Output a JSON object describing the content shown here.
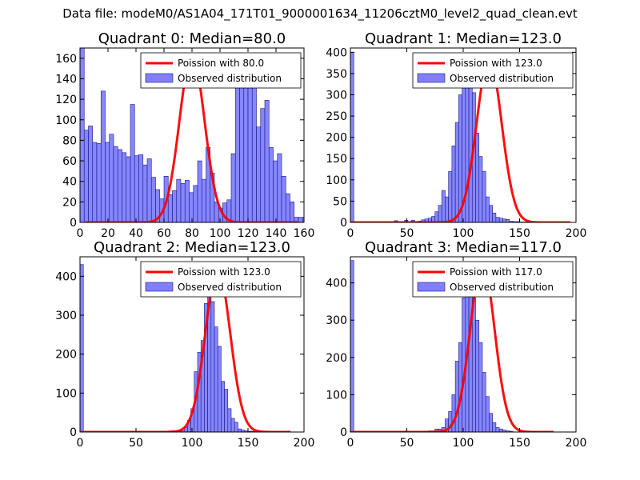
{
  "suptitle": "Data file: modeM0/AS1A04_171T01_9000001634_11206cztM0_level2_quad_clean.evt",
  "colors": {
    "hist_fill": "#7f7fff",
    "hist_edge": "#1a1a80",
    "poisson_line": "#ff0000",
    "axes": "#000000"
  },
  "chart_data": [
    {
      "type": "bar",
      "title": "Quadrant 0: Median=80.0",
      "xlabel": "",
      "ylabel": "",
      "xlim": [
        0,
        160
      ],
      "ylim": [
        0,
        170
      ],
      "xticks": [
        0,
        20,
        40,
        60,
        80,
        100,
        120,
        140,
        160
      ],
      "yticks": [
        0,
        20,
        40,
        60,
        80,
        100,
        120,
        140,
        160
      ],
      "legend": {
        "placement": "top-right",
        "entries": [
          "Poission with 80.0",
          "Observed distribution"
        ]
      },
      "poisson": {
        "mean": 80.0,
        "peak": 163,
        "sigma": 9.0,
        "x_range": [
          4,
          156
        ]
      },
      "histogram": {
        "bin_start": 0,
        "bin_width": 3,
        "values": [
          170,
          90,
          94,
          78,
          77,
          128,
          78,
          86,
          74,
          71,
          68,
          64,
          115,
          65,
          66,
          56,
          62,
          44,
          32,
          23,
          45,
          27,
          31,
          42,
          38,
          41,
          29,
          36,
          60,
          42,
          73,
          48,
          20,
          14,
          19,
          22,
          67,
          141,
          138,
          148,
          163,
          143,
          93,
          111,
          119,
          73,
          60,
          67,
          45,
          28,
          20,
          5,
          5,
          5
        ]
      }
    },
    {
      "type": "bar",
      "title": "Quadrant 1: Median=123.0",
      "xlabel": "",
      "ylabel": "",
      "xlim": [
        0,
        200
      ],
      "ylim": [
        0,
        410
      ],
      "xticks": [
        0,
        50,
        100,
        150,
        200
      ],
      "yticks": [
        0,
        50,
        100,
        150,
        200,
        250,
        300,
        350,
        400
      ],
      "legend": {
        "placement": "top-right",
        "entries": [
          "Poission with 123.0",
          "Observed distribution"
        ]
      },
      "poisson": {
        "mean": 123.0,
        "peak": 385,
        "sigma": 11.1,
        "x_range": [
          0,
          195
        ]
      },
      "histogram": {
        "bin_start": 0,
        "bin_width": 3,
        "values": [
          400,
          0,
          0,
          0,
          0,
          0,
          0,
          0,
          0,
          0,
          1,
          0,
          1,
          4,
          1,
          1,
          5,
          2,
          5,
          2,
          3,
          6,
          8,
          10,
          14,
          25,
          40,
          75,
          60,
          120,
          180,
          235,
          300,
          350,
          355,
          330,
          305,
          210,
          155,
          120,
          60,
          40,
          22,
          12,
          10,
          8,
          7,
          3,
          2,
          2,
          1,
          1,
          1,
          0,
          0,
          0,
          0,
          0,
          0,
          0,
          0,
          0,
          0,
          0,
          0,
          0
        ]
      }
    },
    {
      "type": "bar",
      "title": "Quadrant 2: Median=123.0",
      "xlabel": "",
      "ylabel": "",
      "xlim": [
        0,
        200
      ],
      "ylim": [
        0,
        450
      ],
      "xticks": [
        0,
        50,
        100,
        150,
        200
      ],
      "yticks": [
        0,
        100,
        200,
        300,
        400
      ],
      "legend": {
        "placement": "top-right",
        "entries": [
          "Poission with 123.0",
          "Observed distribution"
        ]
      },
      "poisson": {
        "mean": 123.0,
        "peak": 420,
        "sigma": 11.1,
        "x_range": [
          0,
          188
        ]
      },
      "histogram": {
        "bin_start": 0,
        "bin_width": 3,
        "values": [
          430,
          0,
          0,
          0,
          0,
          0,
          0,
          0,
          0,
          0,
          0,
          0,
          0,
          0,
          0,
          0,
          0,
          0,
          0,
          0,
          0,
          0,
          0,
          0,
          0,
          0,
          0,
          3,
          3,
          3,
          3,
          12,
          30,
          60,
          155,
          205,
          235,
          330,
          395,
          335,
          270,
          220,
          130,
          110,
          60,
          35,
          25,
          8,
          5,
          3,
          2,
          2,
          0,
          0,
          0,
          0,
          0,
          0,
          0,
          0,
          0,
          0,
          0,
          0,
          0,
          0
        ]
      }
    },
    {
      "type": "bar",
      "title": "Quadrant 3: Median=117.0",
      "xlabel": "",
      "ylabel": "",
      "xlim": [
        0,
        200
      ],
      "ylim": [
        0,
        470
      ],
      "xticks": [
        0,
        50,
        100,
        150,
        200
      ],
      "yticks": [
        0,
        100,
        200,
        300,
        400
      ],
      "legend": {
        "placement": "top-right",
        "entries": [
          "Poission with 117.0",
          "Observed distribution"
        ]
      },
      "poisson": {
        "mean": 117.0,
        "peak": 455,
        "sigma": 10.8,
        "x_range": [
          0,
          180
        ]
      },
      "histogram": {
        "bin_start": 0,
        "bin_width": 3,
        "values": [
          460,
          0,
          0,
          0,
          0,
          0,
          0,
          0,
          0,
          0,
          0,
          0,
          0,
          0,
          0,
          0,
          0,
          0,
          0,
          0,
          0,
          0,
          0,
          3,
          3,
          8,
          8,
          12,
          35,
          55,
          100,
          190,
          240,
          360,
          390,
          410,
          360,
          300,
          240,
          160,
          95,
          50,
          25,
          12,
          8,
          5,
          3,
          2,
          0,
          0,
          0,
          0,
          0,
          0,
          0,
          0,
          0,
          0,
          0,
          0,
          0,
          0,
          0,
          0,
          0,
          0,
          0
        ]
      }
    }
  ]
}
